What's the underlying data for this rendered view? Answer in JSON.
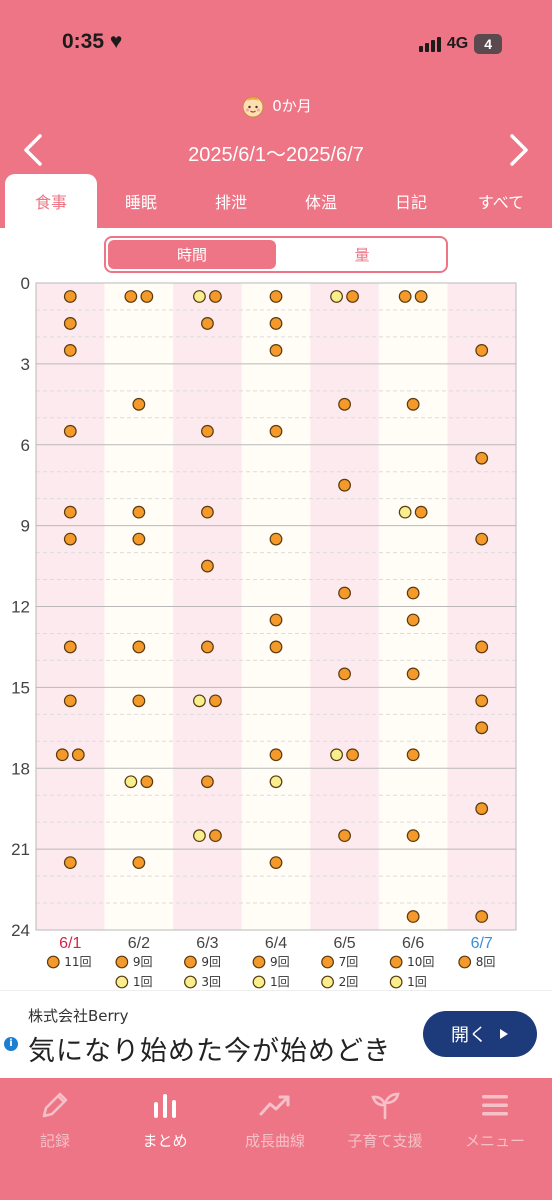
{
  "status_bar": {
    "time": "0:35",
    "network": "4G",
    "battery": "4"
  },
  "header": {
    "baby_age": "0か月",
    "date_range": "2025/6/1〜2025/6/7"
  },
  "tabs": [
    {
      "label": "食事",
      "active": true
    },
    {
      "label": "睡眠",
      "active": false
    },
    {
      "label": "排泄",
      "active": false
    },
    {
      "label": "体温",
      "active": false
    },
    {
      "label": "日記",
      "active": false
    },
    {
      "label": "すべて",
      "active": false
    }
  ],
  "segment": {
    "time_label": "時間",
    "amount_label": "量",
    "selected": "時間"
  },
  "colors": {
    "accent": "#ed7585",
    "dot_orange": "#f39a2b",
    "dot_yellow": "#f7ee8e",
    "sunday": "#d6224b",
    "saturday": "#3a8ed8"
  },
  "chart_data": {
    "type": "scatter",
    "ylim": [
      0,
      24
    ],
    "yticks": [
      0,
      3,
      6,
      9,
      12,
      15,
      18,
      21,
      24
    ],
    "days": [
      {
        "label": "6/1",
        "color": "sunday",
        "orange": [
          0.5,
          1.5,
          2.5,
          5.5,
          8.5,
          9.5,
          13.5,
          15.5,
          17.5,
          17.5,
          21.5
        ],
        "yellow": [],
        "legend": [
          {
            "kind": "orange",
            "text": "11回"
          }
        ]
      },
      {
        "label": "6/2",
        "color": "normal",
        "orange": [
          0.5,
          0.5,
          4.5,
          8.5,
          9.5,
          13.5,
          15.5,
          18.5,
          21.5
        ],
        "yellow": [
          18.5
        ],
        "legend": [
          {
            "kind": "orange",
            "text": "9回"
          },
          {
            "kind": "yellow",
            "text": "1回"
          }
        ]
      },
      {
        "label": "6/3",
        "color": "normal",
        "orange": [
          0.5,
          1.5,
          5.5,
          8.5,
          10.5,
          13.5,
          15.5,
          18.5,
          20.5
        ],
        "yellow": [
          0.5,
          15.5,
          20.5
        ],
        "legend": [
          {
            "kind": "orange",
            "text": "9回"
          },
          {
            "kind": "yellow",
            "text": "3回"
          }
        ]
      },
      {
        "label": "6/4",
        "color": "normal",
        "orange": [
          0.5,
          1.5,
          2.5,
          5.5,
          9.5,
          12.5,
          13.5,
          17.5,
          21.5
        ],
        "yellow": [
          18.5
        ],
        "legend": [
          {
            "kind": "orange",
            "text": "9回"
          },
          {
            "kind": "yellow",
            "text": "1回"
          }
        ]
      },
      {
        "label": "6/5",
        "color": "normal",
        "orange": [
          0.5,
          4.5,
          7.5,
          11.5,
          14.5,
          17.5,
          20.5
        ],
        "yellow": [
          0.5,
          17.5
        ],
        "legend": [
          {
            "kind": "orange",
            "text": "7回"
          },
          {
            "kind": "yellow",
            "text": "2回"
          }
        ]
      },
      {
        "label": "6/6",
        "color": "normal",
        "orange": [
          0.5,
          0.5,
          4.5,
          8.5,
          11.5,
          12.5,
          14.5,
          17.5,
          20.5,
          23.5
        ],
        "yellow": [
          8.5
        ],
        "legend": [
          {
            "kind": "orange",
            "text": "10回"
          },
          {
            "kind": "yellow",
            "text": "1回"
          }
        ]
      },
      {
        "label": "6/7",
        "color": "saturday",
        "orange": [
          2.5,
          6.5,
          9.5,
          13.5,
          15.5,
          16.5,
          19.5,
          23.5
        ],
        "yellow": [],
        "legend": [
          {
            "kind": "orange",
            "text": "8回"
          }
        ]
      }
    ]
  },
  "ad": {
    "company": "株式会社Berry",
    "headline": "気になり始めた今が始めどき",
    "button_label": "開く"
  },
  "bottom_nav": [
    {
      "label": "記録",
      "icon": "pencil-icon",
      "active": false
    },
    {
      "label": "まとめ",
      "icon": "bar-chart-icon",
      "active": true
    },
    {
      "label": "成長曲線",
      "icon": "trend-icon",
      "active": false
    },
    {
      "label": "子育て支援",
      "icon": "sprout-icon",
      "active": false
    },
    {
      "label": "メニュー",
      "icon": "menu-icon",
      "active": false
    }
  ]
}
